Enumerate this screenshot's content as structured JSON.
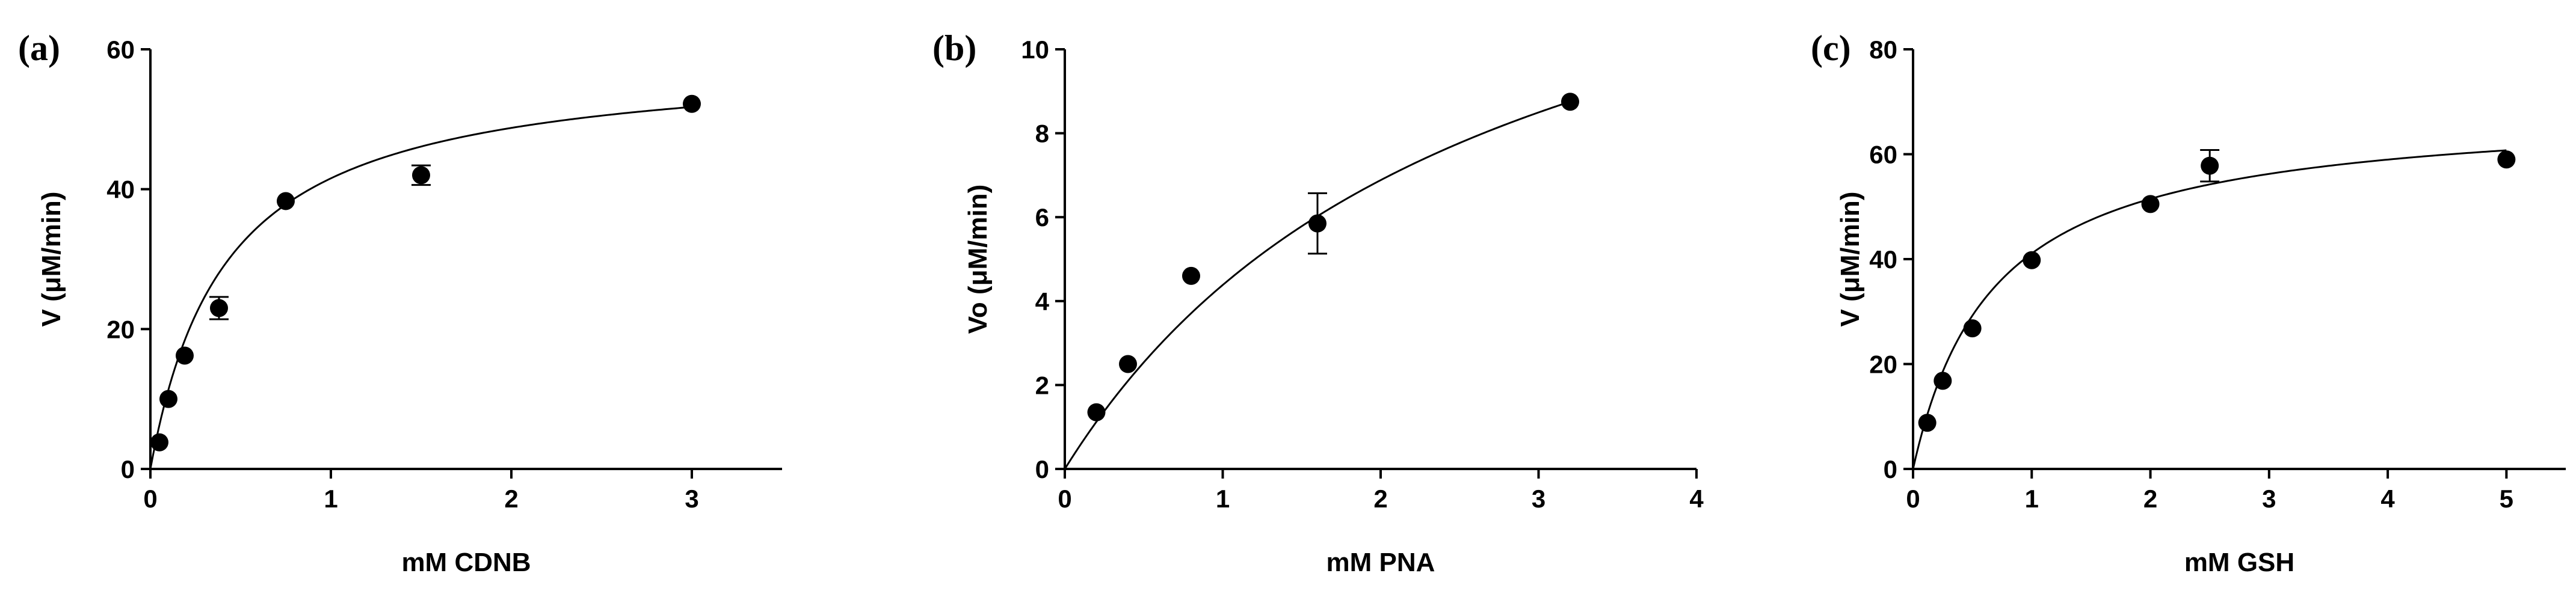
{
  "chart_data": [
    {
      "type": "scatter",
      "panel_label": "(a)",
      "xlabel": "mM CDNB",
      "ylabel": "V (μM/min)",
      "xlim": [
        0,
        3.5
      ],
      "ylim": [
        0,
        60
      ],
      "xticks": [
        0,
        1,
        2,
        3
      ],
      "yticks": [
        0,
        20,
        40,
        60
      ],
      "grid": false,
      "series": [
        {
          "x": [
            0.05,
            0.1,
            0.19,
            0.38,
            0.75,
            1.5,
            3.0
          ],
          "y": [
            3.8,
            10.0,
            16.2,
            23.0,
            38.3,
            42.0,
            52.2
          ],
          "err": [
            0.0,
            0.0,
            0.0,
            1.6,
            0.0,
            1.4,
            0.0
          ]
        }
      ],
      "fit": {
        "model": "michaelis-menten",
        "vmax": 59.0,
        "km": 0.42,
        "x_end": 3.0
      }
    },
    {
      "type": "scatter",
      "panel_label": "(b)",
      "xlabel": "mM PNA",
      "ylabel": "Vo (μM/min)",
      "xlim": [
        0,
        4
      ],
      "ylim": [
        0,
        10
      ],
      "xticks": [
        0,
        1,
        2,
        3,
        4
      ],
      "yticks": [
        0,
        2,
        4,
        6,
        8,
        10
      ],
      "grid": false,
      "series": [
        {
          "x": [
            0.2,
            0.4,
            0.8,
            1.6,
            3.2
          ],
          "y": [
            1.35,
            2.5,
            4.6,
            5.85,
            8.75
          ],
          "err": [
            0.0,
            0.0,
            0.0,
            0.72,
            0.0
          ]
        }
      ],
      "fit": {
        "model": "michaelis-menten",
        "vmax": 16.0,
        "km": 2.65,
        "x_end": 3.2
      }
    },
    {
      "type": "scatter",
      "panel_label": "(c)",
      "xlabel": "mM GSH",
      "ylabel": "V (μM/min)",
      "xlim": [
        0,
        5.5
      ],
      "ylim": [
        0,
        80
      ],
      "xticks": [
        0,
        1,
        2,
        3,
        4,
        5
      ],
      "yticks": [
        0,
        20,
        40,
        60,
        80
      ],
      "grid": false,
      "series": [
        {
          "x": [
            0.12,
            0.25,
            0.5,
            1.0,
            2.0,
            2.5,
            5.0
          ],
          "y": [
            8.8,
            16.8,
            26.8,
            39.8,
            50.5,
            57.8,
            59.0
          ],
          "err": [
            0.0,
            0.0,
            0.0,
            0.0,
            0.0,
            3.0,
            0.0
          ]
        }
      ],
      "fit": {
        "model": "michaelis-menten",
        "vmax": 69.0,
        "km": 0.68,
        "x_end": 5.0
      }
    }
  ]
}
